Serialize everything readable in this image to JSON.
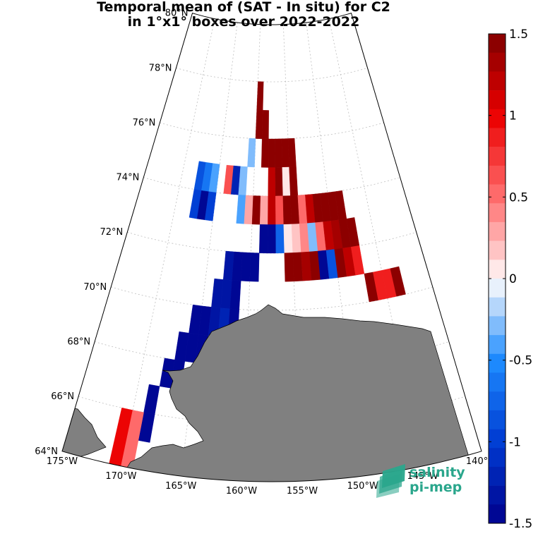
{
  "title": {
    "line1": "Temporal mean of (SAT - In situ) for C2",
    "line2": "in 1°x1° boxes over 2022-2022"
  },
  "lat_labels": [
    "80°N",
    "78°N",
    "76°N",
    "74°N",
    "72°N",
    "70°N",
    "68°N",
    "66°N",
    "64°N"
  ],
  "lon_labels": [
    "175°W",
    "170°W",
    "165°W",
    "160°W",
    "155°W",
    "150°W",
    "145°W",
    "140°W"
  ],
  "colorbar": {
    "min": -1.5,
    "max": 1.5,
    "tick_labels": [
      "1.5",
      "1",
      "0.5",
      "0",
      "-0.5",
      "-1",
      "-1.5"
    ],
    "levels": 26,
    "low_color": "#00008c",
    "zero_color": "#ffffff",
    "high_color": "#800000"
  },
  "logo": {
    "line1": "salinity",
    "line2": "pi-mep",
    "color": "#2aa68c"
  },
  "colors": {
    "land": "#808080",
    "grid": "#bdbdbd"
  },
  "chart_data": {
    "type": "heatmap",
    "projection": "polar stereographic",
    "value_range": [
      -1.5,
      1.5
    ],
    "cells": [
      {
        "lon": -159.5,
        "lat": 77.5,
        "value": 1.5
      },
      {
        "lon": -159.5,
        "lat": 76.5,
        "value": 1.5
      },
      {
        "lon": -158.5,
        "lat": 76.5,
        "value": 1.5
      },
      {
        "lon": -158.5,
        "lat": 75.5,
        "value": 1.5
      },
      {
        "lon": -157.5,
        "lat": 75.5,
        "value": 1.5
      },
      {
        "lon": -156.5,
        "lat": 75.5,
        "value": 1.5
      },
      {
        "lon": -155.5,
        "lat": 75.5,
        "value": 1.5
      },
      {
        "lon": -154.5,
        "lat": 75.5,
        "value": 1.5
      },
      {
        "lon": -157.5,
        "lat": 74.5,
        "value": 1.2
      },
      {
        "lon": -156.5,
        "lat": 74.5,
        "value": 1.5
      },
      {
        "lon": -155.5,
        "lat": 74.5,
        "value": 0.0
      },
      {
        "lon": -154.5,
        "lat": 74.5,
        "value": 1.5
      },
      {
        "lon": -167.5,
        "lat": 74.5,
        "value": -0.9
      },
      {
        "lon": -166.5,
        "lat": 74.5,
        "value": -0.6
      },
      {
        "lon": -165.5,
        "lat": 74.5,
        "value": -0.4
      },
      {
        "lon": -163.5,
        "lat": 74.5,
        "value": 0.6
      },
      {
        "lon": -162.5,
        "lat": 74.5,
        "value": -1.2
      },
      {
        "lon": -161.5,
        "lat": 74.5,
        "value": -0.3
      },
      {
        "lon": -160.5,
        "lat": 75.5,
        "value": -0.3
      },
      {
        "lon": -167.5,
        "lat": 73.5,
        "value": -1.0
      },
      {
        "lon": -166.5,
        "lat": 73.5,
        "value": -1.4
      },
      {
        "lon": -165.5,
        "lat": 73.5,
        "value": -1.0
      },
      {
        "lon": -161.5,
        "lat": 73.5,
        "value": -0.4
      },
      {
        "lon": -160.5,
        "lat": 73.5,
        "value": 0.3
      },
      {
        "lon": -159.5,
        "lat": 73.5,
        "value": 1.5
      },
      {
        "lon": -158.5,
        "lat": 73.5,
        "value": 0.3
      },
      {
        "lon": -157.5,
        "lat": 73.5,
        "value": 1.2
      },
      {
        "lon": -156.5,
        "lat": 73.5,
        "value": 0.6
      },
      {
        "lon": -155.5,
        "lat": 73.5,
        "value": 1.5
      },
      {
        "lon": -154.5,
        "lat": 73.5,
        "value": 1.5
      },
      {
        "lon": -153.5,
        "lat": 73.5,
        "value": 0.5
      },
      {
        "lon": -152.5,
        "lat": 73.5,
        "value": 1.2
      },
      {
        "lon": -151.5,
        "lat": 73.5,
        "value": 1.5
      },
      {
        "lon": -150.5,
        "lat": 73.5,
        "value": 1.5
      },
      {
        "lon": -149.5,
        "lat": 73.5,
        "value": 1.5
      },
      {
        "lon": -148.5,
        "lat": 73.5,
        "value": 1.5
      },
      {
        "lon": -158.5,
        "lat": 72.5,
        "value": -1.5
      },
      {
        "lon": -157.5,
        "lat": 72.5,
        "value": -1.5
      },
      {
        "lon": -156.5,
        "lat": 72.5,
        "value": -0.8
      },
      {
        "lon": -155.5,
        "lat": 72.5,
        "value": 0.1
      },
      {
        "lon": -154.5,
        "lat": 72.5,
        "value": 0.2
      },
      {
        "lon": -153.5,
        "lat": 72.5,
        "value": 0.4
      },
      {
        "lon": -152.5,
        "lat": 72.5,
        "value": -0.3
      },
      {
        "lon": -151.5,
        "lat": 72.5,
        "value": 0.5
      },
      {
        "lon": -150.5,
        "lat": 72.5,
        "value": 1.2
      },
      {
        "lon": -149.5,
        "lat": 72.5,
        "value": 1.3
      },
      {
        "lon": -148.5,
        "lat": 72.5,
        "value": 1.5
      },
      {
        "lon": -147.5,
        "lat": 72.5,
        "value": 1.5
      },
      {
        "lon": -155.5,
        "lat": 71.5,
        "value": 1.5
      },
      {
        "lon": -154.5,
        "lat": 71.5,
        "value": 1.5
      },
      {
        "lon": -153.5,
        "lat": 71.5,
        "value": 1.3
      },
      {
        "lon": -152.5,
        "lat": 71.5,
        "value": 1.5
      },
      {
        "lon": -151.5,
        "lat": 71.5,
        "value": -1.5
      },
      {
        "lon": -150.5,
        "lat": 71.5,
        "value": -0.9
      },
      {
        "lon": -149.5,
        "lat": 71.5,
        "value": 1.5
      },
      {
        "lon": -148.5,
        "lat": 71.5,
        "value": 1.2
      },
      {
        "lon": -147.5,
        "lat": 71.5,
        "value": 0.9
      },
      {
        "lon": -146.5,
        "lat": 70.5,
        "value": 1.5
      },
      {
        "lon": -145.5,
        "lat": 70.5,
        "value": 0.9
      },
      {
        "lon": -144.5,
        "lat": 70.5,
        "value": 0.9
      },
      {
        "lon": -143.5,
        "lat": 70.5,
        "value": 1.5
      },
      {
        "lon": -162.5,
        "lat": 71.5,
        "value": -1.3
      },
      {
        "lon": -161.5,
        "lat": 71.5,
        "value": -1.5
      },
      {
        "lon": -160.5,
        "lat": 71.5,
        "value": -1.5
      },
      {
        "lon": -159.5,
        "lat": 71.5,
        "value": -1.5
      },
      {
        "lon": -163.5,
        "lat": 70.5,
        "value": -1.3
      },
      {
        "lon": -162.5,
        "lat": 70.5,
        "value": -1.3
      },
      {
        "lon": -161.5,
        "lat": 70.5,
        "value": -1.5
      },
      {
        "lon": -165.5,
        "lat": 69.5,
        "value": -1.5
      },
      {
        "lon": -164.5,
        "lat": 69.5,
        "value": -1.4
      },
      {
        "lon": -163.5,
        "lat": 69.5,
        "value": -1.3
      },
      {
        "lon": -162.5,
        "lat": 69.5,
        "value": -1.2
      },
      {
        "lon": -161.5,
        "lat": 69.5,
        "value": -1.5
      },
      {
        "lon": -166.5,
        "lat": 68.5,
        "value": -1.5
      },
      {
        "lon": -165.5,
        "lat": 68.5,
        "value": -1.5
      },
      {
        "lon": -164.5,
        "lat": 68.5,
        "value": -1.5
      },
      {
        "lon": -167.5,
        "lat": 67.5,
        "value": -1.5
      },
      {
        "lon": -166.5,
        "lat": 67.5,
        "value": -1.5
      },
      {
        "lon": -168.5,
        "lat": 66.5,
        "value": -1.5
      },
      {
        "lon": -168.5,
        "lat": 65.5,
        "value": -1.5
      },
      {
        "lon": -170.5,
        "lat": 65.5,
        "value": 1.0
      },
      {
        "lon": -169.5,
        "lat": 65.5,
        "value": 0.5
      },
      {
        "lon": -170.5,
        "lat": 64.5,
        "value": 1.0
      },
      {
        "lon": -169.5,
        "lat": 64.5,
        "value": 0.5
      }
    ]
  }
}
